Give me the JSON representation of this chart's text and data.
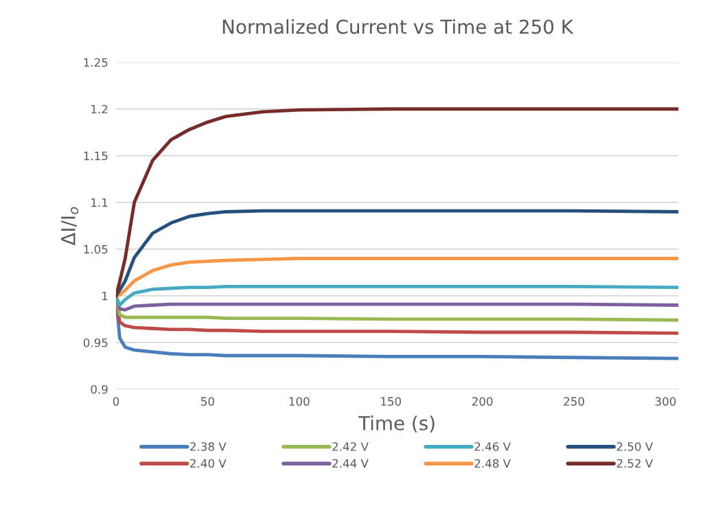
{
  "chart_data": {
    "type": "line",
    "title": "Normalized Current vs Time at 250 K",
    "xlabel": "Time (s)",
    "ylabel": "ΔI/I$_{o}$",
    "x": [
      0,
      2,
      5,
      10,
      20,
      30,
      40,
      50,
      60,
      80,
      100,
      150,
      200,
      250,
      307
    ],
    "series": [
      {
        "name": "2.38 V",
        "color": "#4a7ebb",
        "values": [
          1.0,
          0.955,
          0.945,
          0.942,
          0.94,
          0.938,
          0.937,
          0.937,
          0.936,
          0.936,
          0.936,
          0.935,
          0.935,
          0.934,
          0.933
        ]
      },
      {
        "name": "2.40 V",
        "color": "#be4b48",
        "values": [
          1.0,
          0.972,
          0.968,
          0.966,
          0.965,
          0.964,
          0.964,
          0.963,
          0.963,
          0.962,
          0.962,
          0.962,
          0.961,
          0.961,
          0.96
        ]
      },
      {
        "name": "2.42 V",
        "color": "#98b954",
        "values": [
          1.0,
          0.98,
          0.977,
          0.977,
          0.977,
          0.977,
          0.977,
          0.977,
          0.976,
          0.976,
          0.976,
          0.975,
          0.975,
          0.975,
          0.974
        ]
      },
      {
        "name": "2.44 V",
        "color": "#7d60a0",
        "values": [
          1.0,
          0.986,
          0.985,
          0.989,
          0.99,
          0.991,
          0.991,
          0.991,
          0.991,
          0.991,
          0.991,
          0.991,
          0.991,
          0.991,
          0.99
        ]
      },
      {
        "name": "2.46 V",
        "color": "#46aac5",
        "values": [
          1.0,
          0.99,
          0.996,
          1.003,
          1.007,
          1.008,
          1.009,
          1.009,
          1.01,
          1.01,
          1.01,
          1.01,
          1.01,
          1.01,
          1.009
        ]
      },
      {
        "name": "2.48 V",
        "color": "#f79646",
        "values": [
          1.0,
          1.001,
          1.006,
          1.016,
          1.027,
          1.033,
          1.036,
          1.037,
          1.038,
          1.039,
          1.04,
          1.04,
          1.04,
          1.04,
          1.04
        ]
      },
      {
        "name": "2.50 V",
        "color": "#254f7d",
        "values": [
          1.0,
          1.006,
          1.016,
          1.041,
          1.067,
          1.078,
          1.085,
          1.088,
          1.09,
          1.091,
          1.091,
          1.091,
          1.091,
          1.091,
          1.09
        ]
      },
      {
        "name": "2.52 V",
        "color": "#772c2a",
        "values": [
          1.0,
          1.015,
          1.04,
          1.1,
          1.145,
          1.167,
          1.178,
          1.186,
          1.192,
          1.197,
          1.199,
          1.2,
          1.2,
          1.2,
          1.2
        ]
      }
    ],
    "xlim": [
      0,
      307
    ],
    "xticks": [
      0,
      50,
      100,
      150,
      200,
      250,
      300
    ],
    "ylim": [
      0.9,
      1.25
    ],
    "yticks": [
      0.9,
      0.95,
      1,
      1.05,
      1.1,
      1.15,
      1.2,
      1.25
    ],
    "grid": "y",
    "legend": "bottom",
    "line_style": "solid",
    "marker": "none"
  }
}
